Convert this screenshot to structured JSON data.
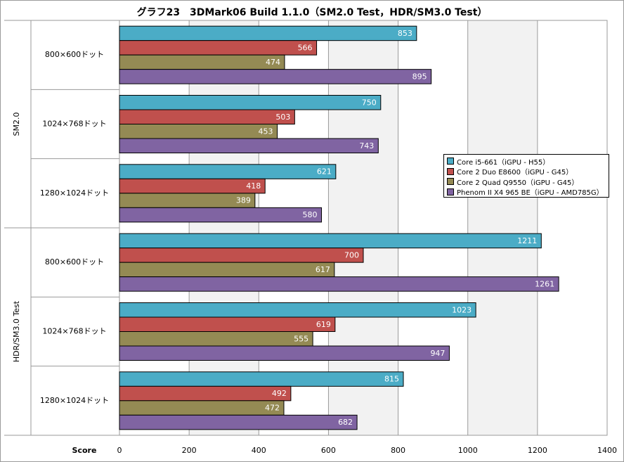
{
  "chart_data": {
    "type": "bar",
    "orientation": "horizontal",
    "title": "グラフ23　3DMark06 Build 1.1.0（SM2.0 Test，HDR/SM3.0 Test）",
    "xlabel": "Score",
    "xlim": [
      0,
      1400
    ],
    "xticks": [
      0,
      200,
      400,
      600,
      800,
      1000,
      1200,
      1400
    ],
    "groups": [
      {
        "label": "SM2.0",
        "categories": [
          {
            "label": "800×600ドット",
            "values": [
              853,
              566,
              474,
              895
            ]
          },
          {
            "label": "1024×768ドット",
            "values": [
              750,
              503,
              453,
              743
            ]
          },
          {
            "label": "1280×1024ドット",
            "values": [
              621,
              418,
              389,
              580
            ]
          }
        ]
      },
      {
        "label": "HDR/SM3.0 Test",
        "categories": [
          {
            "label": "800×600ドット",
            "values": [
              1211,
              700,
              617,
              1261
            ]
          },
          {
            "label": "1024×768ドット",
            "values": [
              1023,
              619,
              555,
              947
            ]
          },
          {
            "label": "1280×1024ドット",
            "values": [
              815,
              492,
              472,
              682
            ]
          }
        ]
      }
    ],
    "series": [
      {
        "name": "Core i5-661（iGPU - H55）",
        "color": "#4bacc6"
      },
      {
        "name": "Core 2 Duo E8600（iGPU - G45）",
        "color": "#c0504d"
      },
      {
        "name": "Core 2 Quad Q9550（iGPU - G45）",
        "color": "#948a54"
      },
      {
        "name": "Phenom II X4 965 BE（iGPU - AMD785G）",
        "color": "#8064a2"
      }
    ],
    "legend_position": "right",
    "grid": true
  }
}
